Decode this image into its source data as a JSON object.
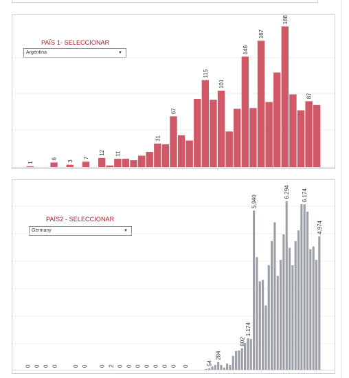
{
  "panel1": {
    "title": "PAÍS 1- SELECCIONAR",
    "selected": "Argentina",
    "dropdown_icon": "caret-down-icon",
    "bar_color": "#cf5966",
    "chart_data": {
      "type": "bar",
      "values": [
        1,
        0,
        0,
        6,
        0,
        3,
        0,
        7,
        0,
        12,
        2,
        11,
        11,
        9,
        15,
        20,
        31,
        30,
        67,
        42,
        35,
        90,
        115,
        89,
        101,
        47,
        77,
        146,
        78,
        167,
        86,
        125,
        186,
        96,
        75,
        87,
        82
      ],
      "labels": {
        "0": "1",
        "3": "6",
        "5": "3",
        "7": "7",
        "9": "12",
        "11": "11",
        "16": "31",
        "18": "67",
        "22": "115",
        "24": "101",
        "27": "146",
        "29": "167",
        "32": "186",
        "35": "87"
      },
      "ylim": [
        0,
        200
      ]
    }
  },
  "panel2": {
    "title": "PAÍS2 - SELECCIONAR",
    "selected": "Germany",
    "dropdown_icon": "caret-down-icon",
    "bar_color": "#9ca0a6",
    "chart_data": {
      "type": "bar",
      "values": [
        0,
        0,
        0,
        0,
        0,
        0,
        0,
        0,
        0,
        0,
        0,
        0,
        0,
        0,
        0,
        0,
        0,
        0,
        0,
        0,
        0,
        0,
        0,
        0,
        0,
        0,
        0,
        1,
        0,
        2,
        0,
        0,
        0,
        0,
        0,
        0,
        0,
        0,
        0,
        0,
        0,
        0,
        0,
        0,
        0,
        0,
        0,
        0,
        0,
        0,
        0,
        0,
        0,
        0,
        0,
        0,
        0,
        0,
        0,
        0,
        0,
        30,
        54,
        120,
        180,
        284,
        180,
        80,
        230,
        180,
        520,
        700,
        720,
        802,
        1000,
        1174,
        1150,
        5940,
        4200,
        3300,
        3350,
        2400,
        3900,
        4800,
        5500,
        3500,
        4100,
        5050,
        6294,
        4550,
        3900,
        4800,
        5200,
        6180,
        6174,
        5900,
        4500,
        4600,
        4100,
        4974
      ],
      "labels": {
        "1": "0",
        "4": "0",
        "7": "0",
        "10": "0",
        "17": "0",
        "20": "0",
        "26": "0",
        "29": "2",
        "32": "0",
        "35": "0",
        "38": "0",
        "41": "0",
        "44": "0",
        "47": "0",
        "50": "0",
        "54": "0",
        "62": "54",
        "65": "284",
        "73": "802",
        "75": "1.174",
        "77": "5.940",
        "88": "6.294",
        "94": "6.174",
        "99": "4.974"
      },
      "ylim": [
        0,
        7000
      ]
    }
  }
}
